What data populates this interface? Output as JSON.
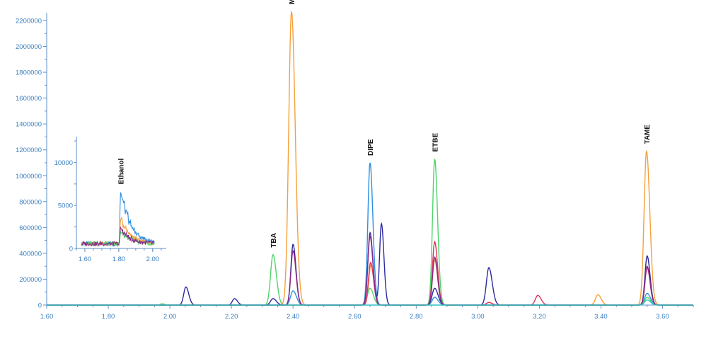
{
  "chart_data": {
    "type": "line",
    "title": "",
    "xlabel": "",
    "ylabel": "",
    "xlim": [
      1.6,
      3.7
    ],
    "ylim": [
      0,
      2260000
    ],
    "x_ticks": [
      "1.60",
      "1.80",
      "2.00",
      "2.20",
      "2.40",
      "2.60",
      "2.80",
      "3.00",
      "3.20",
      "3.40",
      "3.60"
    ],
    "y_ticks": [
      "200000",
      "400000",
      "600000",
      "800000",
      "1000000",
      "1200000",
      "1400000",
      "1600000",
      "1800000",
      "2000000",
      "2200000"
    ],
    "grid": false,
    "colors": {
      "orange": "#f5a03a",
      "blue": "#2f8fe0",
      "navy": "#2b2a9e",
      "green": "#4fd46a",
      "red": "#e0325a",
      "purple": "#8a2a8a",
      "teal": "#2ec4c4"
    },
    "series": [
      {
        "color": "#f5a03a",
        "peaks": [
          [
            2.395,
            2270000,
            0.009
          ],
          [
            2.653,
            310000,
            0.007
          ],
          [
            2.86,
            350000,
            0.007
          ],
          [
            3.39,
            80000,
            0.008
          ],
          [
            3.548,
            1190000,
            0.008
          ]
        ]
      },
      {
        "color": "#2f8fe0",
        "peaks": [
          [
            2.4,
            110000,
            0.008
          ],
          [
            2.65,
            1100000,
            0.007
          ],
          [
            2.86,
            60000,
            0.008
          ],
          [
            3.55,
            90000,
            0.008
          ]
        ]
      },
      {
        "color": "#2b2a9e",
        "peaks": [
          [
            2.052,
            140000,
            0.007
          ],
          [
            2.21,
            50000,
            0.007
          ],
          [
            2.335,
            50000,
            0.008
          ],
          [
            2.4,
            470000,
            0.007
          ],
          [
            2.65,
            560000,
            0.007
          ],
          [
            2.687,
            630000,
            0.006
          ],
          [
            2.86,
            130000,
            0.008
          ],
          [
            3.036,
            290000,
            0.008
          ],
          [
            3.55,
            380000,
            0.007
          ]
        ]
      },
      {
        "color": "#4fd46a",
        "peaks": [
          [
            1.975,
            10000,
            0.006
          ],
          [
            2.335,
            390000,
            0.008
          ],
          [
            2.65,
            130000,
            0.008
          ],
          [
            2.86,
            1130000,
            0.007
          ],
          [
            3.55,
            60000,
            0.008
          ]
        ]
      },
      {
        "color": "#e0325a",
        "peaks": [
          [
            2.652,
            330000,
            0.007
          ],
          [
            2.86,
            490000,
            0.007
          ],
          [
            3.036,
            20000,
            0.008
          ],
          [
            3.195,
            75000,
            0.008
          ],
          [
            3.55,
            290000,
            0.007
          ]
        ]
      },
      {
        "color": "#8a2a8a",
        "peaks": [
          [
            2.4,
            420000,
            0.007
          ],
          [
            2.65,
            530000,
            0.007
          ],
          [
            2.86,
            370000,
            0.007
          ],
          [
            3.55,
            300000,
            0.007
          ]
        ]
      },
      {
        "color": "#2ec4c4",
        "peaks": [
          [
            3.55,
            40000,
            0.008
          ]
        ]
      }
    ],
    "peak_labels": [
      {
        "text": "TBA",
        "x": 2.335,
        "y": 390000
      },
      {
        "text": "MTBE",
        "x": 2.395,
        "y": 2270000
      },
      {
        "text": "DIPE",
        "x": 2.65,
        "y": 1100000
      },
      {
        "text": "ETBE",
        "x": 2.86,
        "y": 1130000
      },
      {
        "text": "TAME",
        "x": 3.548,
        "y": 1190000
      }
    ],
    "inset": {
      "xlim": [
        1.55,
        2.08
      ],
      "ylim": [
        0,
        13000
      ],
      "x_ticks": [
        "1.60",
        "1.80",
        "2.00"
      ],
      "y_ticks": [
        "0",
        "5000",
        "10000"
      ],
      "label": {
        "text": "Ethanol",
        "x": 1.81,
        "y": 6800
      },
      "series": [
        {
          "color": "#2f8fe0",
          "peak": [
            1.81,
            6800
          ]
        },
        {
          "color": "#f5a03a",
          "peak": [
            1.81,
            3000
          ]
        },
        {
          "color": "#4fd46a",
          "peak": [
            1.81,
            1400
          ]
        },
        {
          "color": "#8a2a8a",
          "peak": [
            1.81,
            1800
          ]
        }
      ]
    }
  }
}
